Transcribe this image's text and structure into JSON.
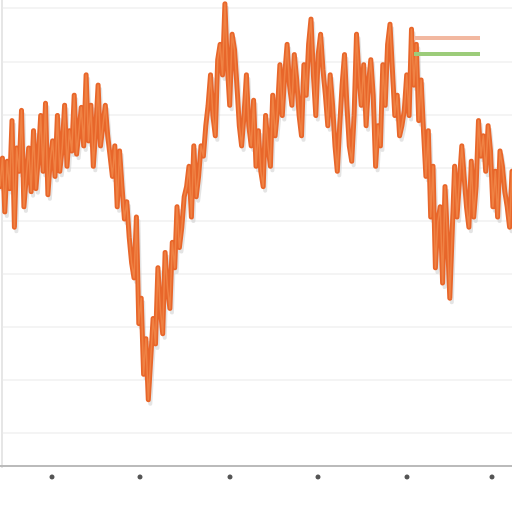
{
  "chart_data": {
    "type": "line",
    "title": "",
    "xlabel": "",
    "ylabel": "",
    "grid": true,
    "legend_position": "top-right",
    "legend": [
      {
        "label": "",
        "color": "#f2b8a0"
      },
      {
        "label": "",
        "color": "#9ccc7a"
      }
    ],
    "x_tick_labels": [
      "",
      "",
      "",
      "",
      "",
      ""
    ],
    "series": [
      {
        "color": "#e8662a",
        "values": [
          230,
          258,
          205,
          255,
          228,
          295,
          190,
          268,
          245,
          305,
          210,
          240,
          268,
          225,
          285,
          228,
          258,
          300,
          245,
          312,
          222,
          255,
          275,
          240,
          300,
          245,
          268,
          310,
          250,
          285,
          265,
          320,
          262,
          285,
          308,
          270,
          340,
          275,
          310,
          250,
          285,
          330,
          270,
          290,
          310,
          280,
          260,
          240,
          270,
          210,
          265,
          230,
          198,
          215,
          180,
          155,
          140,
          200,
          95,
          120,
          45,
          80,
          20,
          60,
          100,
          75,
          150,
          110,
          85,
          165,
          130,
          110,
          175,
          150,
          210,
          170,
          190,
          220,
          230,
          250,
          200,
          270,
          220,
          240,
          270,
          260,
          290,
          310,
          340,
          300,
          280,
          355,
          370,
          340,
          410,
          350,
          310,
          380,
          365,
          330,
          290,
          270,
          300,
          340,
          290,
          270,
          315,
          250,
          285,
          245,
          230,
          300,
          270,
          250,
          320,
          280,
          305,
          350,
          300,
          340,
          370,
          330,
          310,
          360,
          335,
          300,
          280,
          350,
          320,
          370,
          395,
          340,
          300,
          360,
          380,
          345,
          320,
          290,
          340,
          310,
          270,
          245,
          290,
          330,
          360,
          310,
          270,
          255,
          300,
          380,
          340,
          310,
          350,
          290,
          330,
          355,
          320,
          250,
          290,
          270,
          350,
          310,
          370,
          390,
          345,
          300,
          320,
          280,
          290,
          305,
          340,
          300,
          385,
          330,
          370,
          295,
          335,
          285,
          240,
          285,
          200,
          250,
          150,
          195,
          210,
          135,
          230,
          180,
          120,
          185,
          250,
          200,
          235,
          270,
          240,
          210,
          190,
          255,
          200,
          230,
          295,
          260,
          280,
          245,
          290,
          265,
          210,
          245,
          200,
          265,
          250,
          225,
          210,
          190,
          245
        ]
      }
    ]
  }
}
